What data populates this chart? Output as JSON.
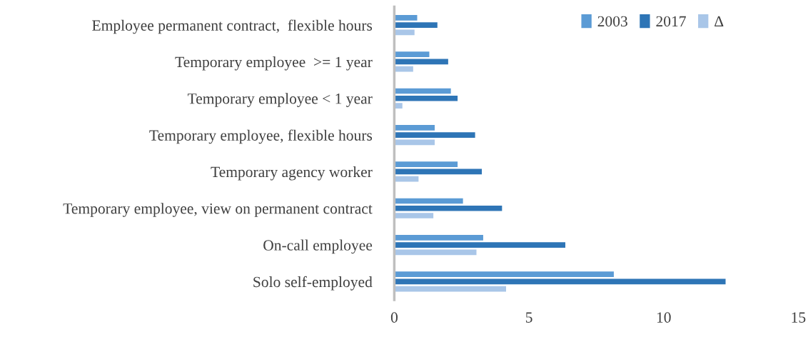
{
  "chart_data": {
    "type": "bar",
    "orientation": "horizontal",
    "categories": [
      "Employee permanent contract,  flexible hours",
      "Temporary employee  >= 1 year",
      "Temporary employee < 1 year",
      "Temporary employee, flexible hours",
      "Temporary agency worker",
      "Temporary employee, view on permanent contract",
      "On-call employee",
      "Solo self-employed"
    ],
    "series": [
      {
        "name": "2003",
        "color": "#5b9bd5",
        "values": [
          0.85,
          1.3,
          2.1,
          1.5,
          2.35,
          2.55,
          3.3,
          8.15
        ]
      },
      {
        "name": "2017",
        "color": "#2e75b6",
        "values": [
          1.6,
          2.0,
          2.35,
          3.0,
          3.25,
          4.0,
          6.35,
          12.3
        ]
      },
      {
        "name": "Δ",
        "color": "#a9c6e8",
        "values": [
          0.75,
          0.7,
          0.3,
          1.5,
          0.9,
          1.45,
          3.05,
          4.15
        ]
      }
    ],
    "xlim": [
      0,
      15
    ],
    "xticks": [
      0,
      5,
      10,
      15
    ],
    "grid": false,
    "legend": "top right"
  }
}
